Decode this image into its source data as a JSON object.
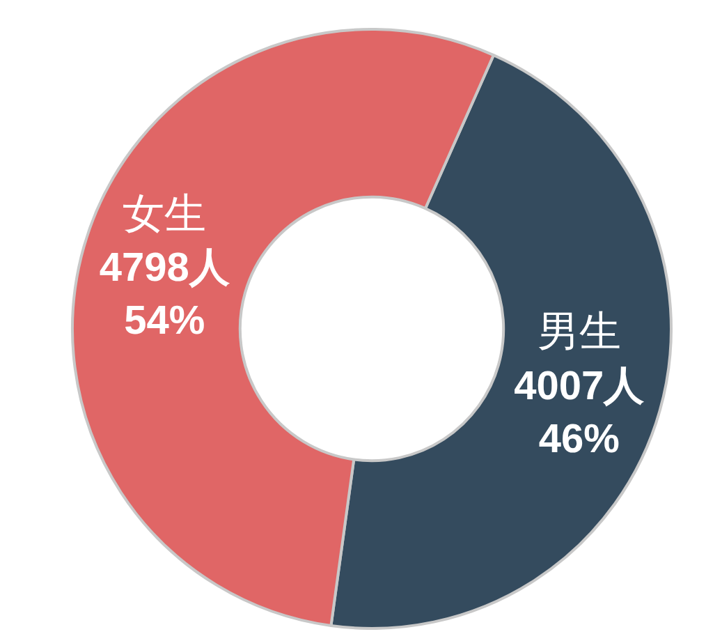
{
  "chart_data": {
    "type": "donut",
    "categories": [
      "男生",
      "女生"
    ],
    "values": [
      4007,
      4798
    ],
    "colors": [
      "#344b5e",
      "#e06666"
    ],
    "value_labels": [
      "4007人\n46%",
      "4798人\n54%"
    ],
    "legend": false
  }
}
